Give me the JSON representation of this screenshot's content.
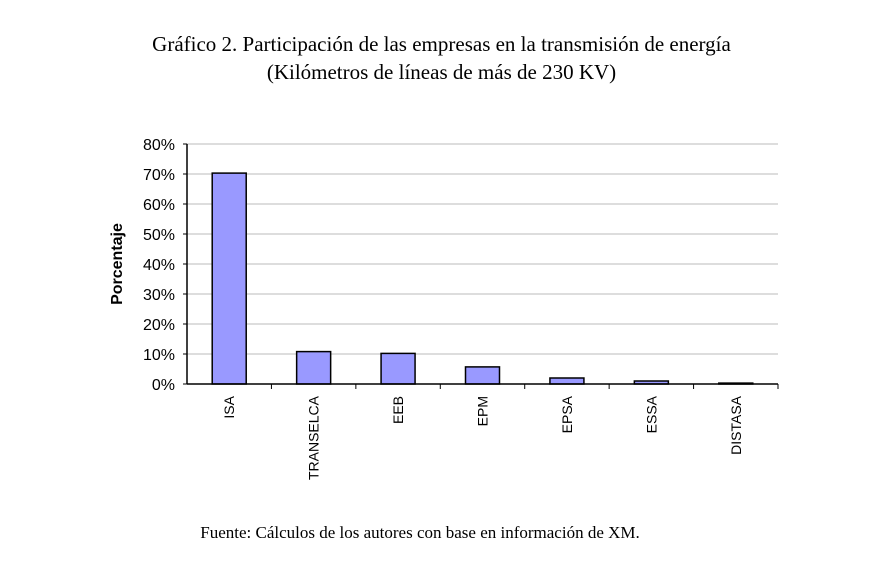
{
  "chart_data": {
    "type": "bar",
    "title": "Gráfico 2. Participación de las empresas en la transmisión de energía",
    "subtitle": "(Kilómetros de líneas de más de 230 KV)",
    "xlabel": "",
    "ylabel": "Porcentaje",
    "categories": [
      "ISA",
      "TRANSELCA",
      "EEB",
      "EPM",
      "EPSA",
      "ESSA",
      "DISTASA"
    ],
    "values": [
      70.3,
      10.8,
      10.2,
      5.7,
      2.0,
      1.0,
      0.3
    ],
    "ylim": [
      0,
      80
    ],
    "yticks": [
      "0%",
      "10%",
      "20%",
      "30%",
      "40%",
      "50%",
      "60%",
      "70%",
      "80%"
    ],
    "grid": true,
    "bar_color": "#9999ff",
    "source": "Fuente: Cálculos de los autores con base en información de XM."
  }
}
